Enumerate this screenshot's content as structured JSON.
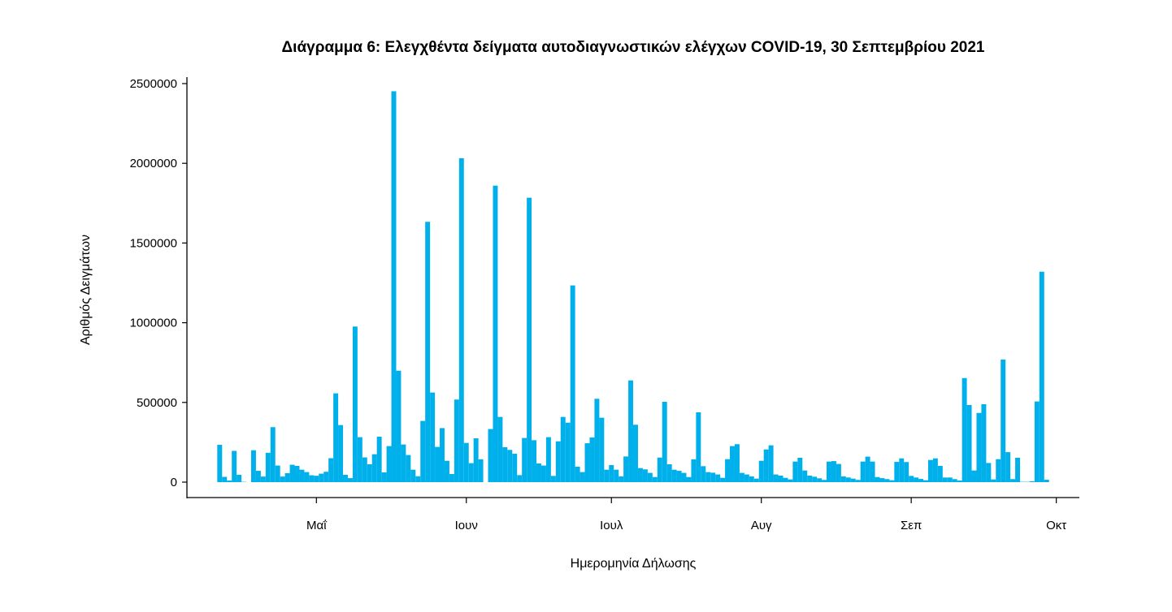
{
  "chart_data": {
    "type": "bar",
    "title": "Διάγραμμα 6: Ελεγχθέντα δείγματα αυτοδιαγνωστικών ελέγχων COVID-19, 30 Σεπτεμβρίου 2021",
    "xlabel": "Ημερομηνία Δήλωσης",
    "ylabel": "Αριθμός Δειγμάτων",
    "ylim": [
      0,
      2500000
    ],
    "yticks": [
      0,
      500000,
      1000000,
      1500000,
      2000000,
      2500000
    ],
    "ytick_labels": [
      "0",
      "500000",
      "1000000",
      "1500000",
      "2000000",
      "2500000"
    ],
    "x_start_date": "2021-04-11",
    "x_unit": "day",
    "xticks": [
      {
        "label": "Μαΐ",
        "day": 20
      },
      {
        "label": "Ιουν",
        "day": 51
      },
      {
        "label": "Ιουλ",
        "day": 81
      },
      {
        "label": "Αυγ",
        "day": 112
      },
      {
        "label": "Σεπ",
        "day": 143
      },
      {
        "label": "Οκτ",
        "day": 173
      }
    ],
    "grid": false,
    "bar_color": "#00B0EB",
    "values": [
      234000,
      33000,
      10000,
      196000,
      46000,
      2000,
      0,
      200000,
      71000,
      35000,
      184000,
      345000,
      104000,
      35000,
      56000,
      109000,
      102000,
      78000,
      63000,
      43000,
      40000,
      53000,
      65000,
      150000,
      557000,
      358000,
      46000,
      25000,
      976000,
      282000,
      155000,
      112000,
      175000,
      285000,
      61000,
      226000,
      2452000,
      699000,
      236000,
      170000,
      78000,
      37000,
      384000,
      1633000,
      562000,
      221000,
      339000,
      134000,
      51000,
      518000,
      2032000,
      246000,
      119000,
      275000,
      143000,
      0,
      333000,
      1860000,
      409000,
      219000,
      202000,
      178000,
      44000,
      277000,
      1784000,
      263000,
      117000,
      104000,
      282000,
      39000,
      256000,
      409000,
      373000,
      1234000,
      97000,
      63000,
      244000,
      280000,
      523000,
      404000,
      78000,
      107000,
      78000,
      36000,
      161000,
      638000,
      360000,
      88000,
      80000,
      58000,
      32000,
      154000,
      504000,
      112000,
      78000,
      71000,
      58000,
      32000,
      143000,
      438000,
      100000,
      63000,
      59000,
      48000,
      27000,
      144000,
      226000,
      238000,
      58000,
      48000,
      36000,
      22000,
      134000,
      205000,
      231000,
      48000,
      41000,
      27000,
      17000,
      129000,
      153000,
      73000,
      41000,
      34000,
      24000,
      14000,
      129000,
      132000,
      114000,
      36000,
      29000,
      22000,
      14000,
      129000,
      160000,
      129000,
      32000,
      25000,
      19000,
      12000,
      127000,
      149000,
      126000,
      39000,
      29000,
      20000,
      12000,
      139000,
      149000,
      102000,
      29000,
      29000,
      19000,
      10000,
      653000,
      484000,
      73000,
      434000,
      489000,
      120000,
      17000,
      144000,
      769000,
      188000,
      19000,
      153000,
      2000,
      2000,
      5000,
      506000,
      1320000,
      15000
    ]
  }
}
